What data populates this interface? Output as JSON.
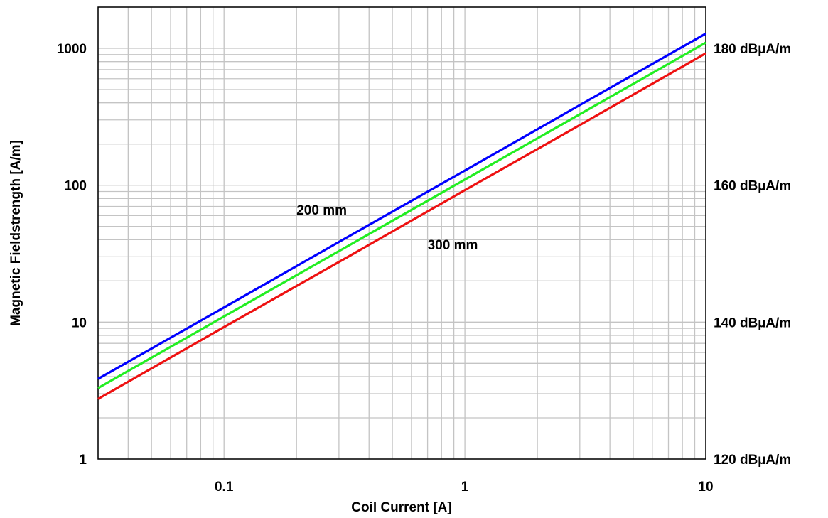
{
  "chart_data": {
    "type": "line",
    "title": "",
    "xlabel": "Coil Current [A]",
    "ylabel": "Magnetic Fieldstrength [A/m]",
    "xscale": "log",
    "yscale": "log",
    "xlim": [
      0.03,
      10
    ],
    "ylim": [
      1,
      2000
    ],
    "grid": true,
    "x_ticks": [
      {
        "value": 0.1,
        "label": "0.1"
      },
      {
        "value": 1,
        "label": "1"
      },
      {
        "value": 10,
        "label": "10"
      }
    ],
    "y_ticks": [
      {
        "value": 1,
        "label": "1"
      },
      {
        "value": 10,
        "label": "10"
      },
      {
        "value": 100,
        "label": "100"
      },
      {
        "value": 1000,
        "label": "1000"
      }
    ],
    "y2_ticks": [
      {
        "value": 1,
        "label": "120 dBµA/m"
      },
      {
        "value": 10,
        "label": "140 dBµA/m"
      },
      {
        "value": 100,
        "label": "160 dBµA/m"
      },
      {
        "value": 1000,
        "label": "180 dBµA/m"
      }
    ],
    "series": [
      {
        "color": "#0000ff",
        "x": [
          0.03,
          0.1,
          0.3,
          1,
          3,
          10
        ],
        "y": [
          3.85,
          12.8,
          38.5,
          128,
          385,
          1280
        ]
      },
      {
        "color": "#22ee22",
        "x": [
          0.03,
          0.1,
          0.3,
          1,
          3,
          10
        ],
        "y": [
          3.3,
          11,
          33,
          110,
          330,
          1100
        ]
      },
      {
        "color": "#ee1111",
        "x": [
          0.03,
          0.1,
          0.3,
          1,
          3,
          10
        ],
        "y": [
          2.75,
          9.2,
          27.5,
          92,
          275,
          920
        ]
      }
    ],
    "annotations": [
      {
        "text": "200 mm",
        "x": 0.2,
        "y": 61
      },
      {
        "text": "300 mm",
        "x": 0.7,
        "y": 34
      }
    ]
  }
}
